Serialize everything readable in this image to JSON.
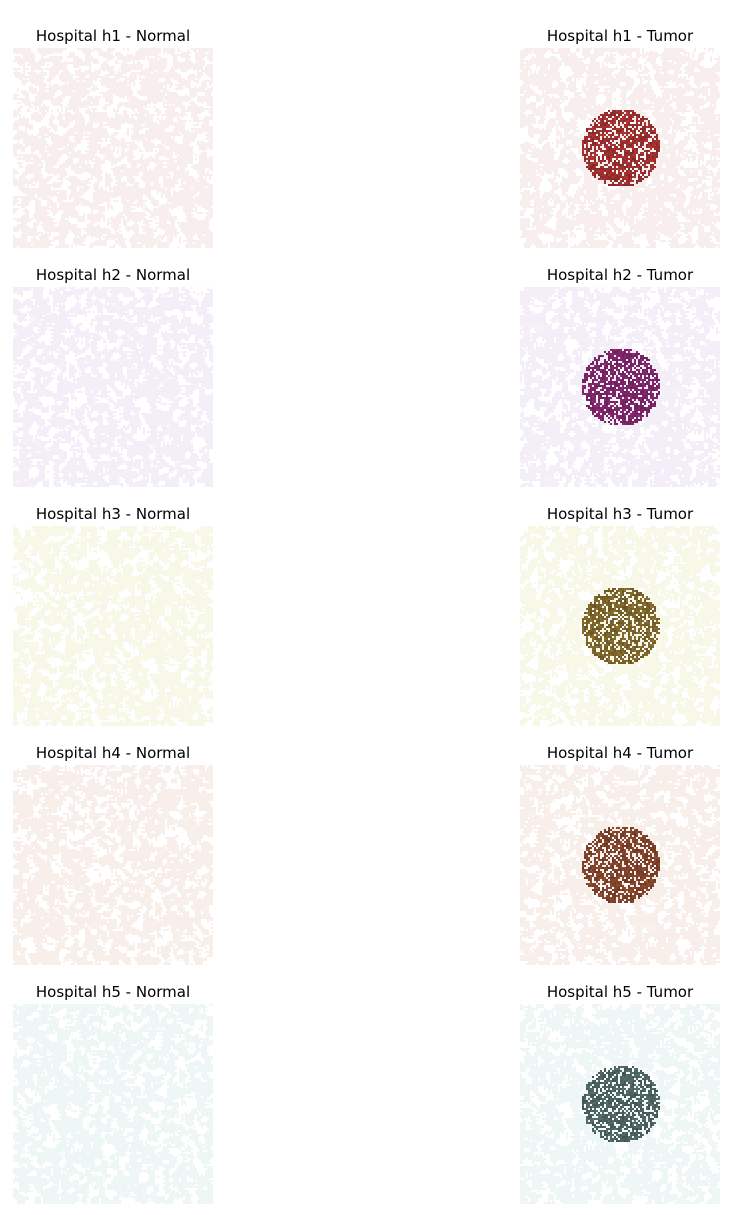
{
  "figure": {
    "rows": [
      {
        "hospital": "h1",
        "tissue_color": "#F8EEEE",
        "tumor_color": "#9B2F2E",
        "panels": [
          {
            "title": "Hospital h1 - Normal",
            "has_tumor": false
          },
          {
            "title": "Hospital h1 - Tumor",
            "has_tumor": true
          }
        ]
      },
      {
        "hospital": "h2",
        "tissue_color": "#F3EEF8",
        "tumor_color": "#7C2466",
        "panels": [
          {
            "title": "Hospital h2 - Normal",
            "has_tumor": false
          },
          {
            "title": "Hospital h2 - Tumor",
            "has_tumor": true
          }
        ]
      },
      {
        "hospital": "h3",
        "tissue_color": "#F7F8E8",
        "tumor_color": "#7C642A",
        "panels": [
          {
            "title": "Hospital h3 - Normal",
            "has_tumor": false
          },
          {
            "title": "Hospital h3 - Tumor",
            "has_tumor": true
          }
        ]
      },
      {
        "hospital": "h4",
        "tissue_color": "#F8EFEA",
        "tumor_color": "#7F422A",
        "panels": [
          {
            "title": "Hospital h4 - Normal",
            "has_tumor": false
          },
          {
            "title": "Hospital h4 - Tumor",
            "has_tumor": true
          }
        ]
      },
      {
        "hospital": "h5",
        "tissue_color": "#EEF6F6",
        "tumor_color": "#4C625F",
        "panels": [
          {
            "title": "Hospital h5 - Normal",
            "has_tumor": false
          },
          {
            "title": "Hospital h5 - Tumor",
            "has_tumor": true
          }
        ]
      }
    ]
  }
}
